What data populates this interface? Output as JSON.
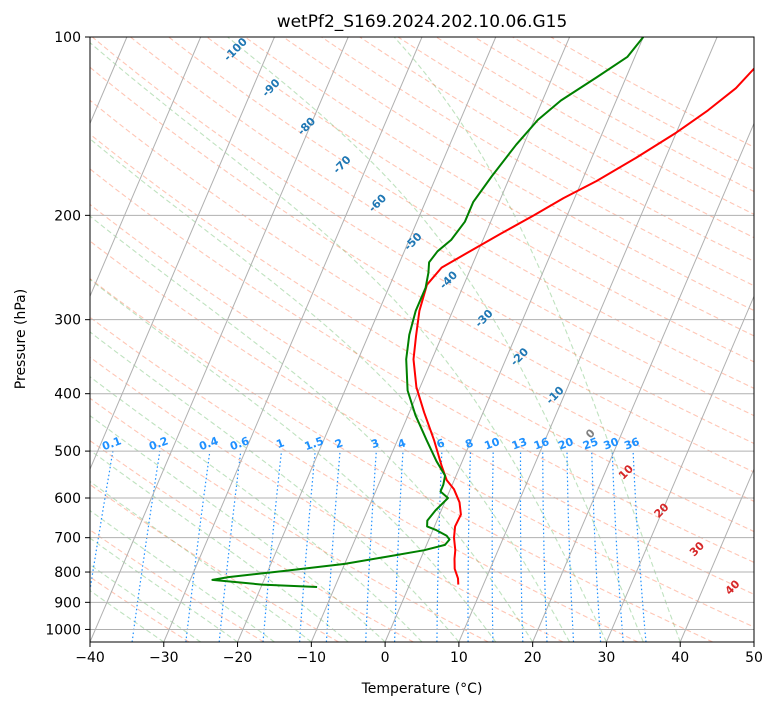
{
  "chart_data": {
    "type": "line",
    "title": "wetPf2_S169.2024.202.10.06.G15",
    "xlabel": "Temperature (°C)",
    "ylabel": "Pressure (hPa)",
    "xlim": [
      -40,
      50
    ],
    "ylim": [
      1050,
      100
    ],
    "y_scale": "log",
    "grid": true,
    "x_ticks": [
      -40,
      -30,
      -20,
      -10,
      0,
      10,
      20,
      30,
      40,
      50
    ],
    "x_tick_labels": [
      "−40",
      "−30",
      "−20",
      "−10",
      "0",
      "10",
      "20",
      "30",
      "40",
      "50"
    ],
    "y_ticks": [
      100,
      200,
      300,
      400,
      500,
      600,
      700,
      800,
      900,
      1000
    ],
    "y_tick_labels": [
      "100",
      "200",
      "300",
      "400",
      "500",
      "600",
      "700",
      "800",
      "900",
      "1000"
    ],
    "series": [
      {
        "color": "#ff0000",
        "points": [
          [
            6.6,
            840
          ],
          [
            6.2,
            820
          ],
          [
            5.2,
            790
          ],
          [
            4.6,
            760
          ],
          [
            4.2,
            735
          ],
          [
            3.3,
            700
          ],
          [
            2.8,
            670
          ],
          [
            2.9,
            640
          ],
          [
            2.0,
            610
          ],
          [
            0.5,
            580
          ],
          [
            -1.0,
            560
          ],
          [
            -2.5,
            530
          ],
          [
            -5,
            480
          ],
          [
            -8,
            430
          ],
          [
            -10.5,
            390
          ],
          [
            -12.5,
            350
          ],
          [
            -13.5,
            320
          ],
          [
            -14.5,
            290
          ],
          [
            -15.0,
            262
          ],
          [
            -14.0,
            245
          ],
          [
            -11.5,
            232
          ],
          [
            -8,
            215
          ],
          [
            -4.5,
            200
          ],
          [
            -1.5,
            187
          ],
          [
            2,
            175
          ],
          [
            6,
            160
          ],
          [
            10,
            145
          ],
          [
            13,
            133
          ],
          [
            15.5,
            122
          ],
          [
            17,
            112
          ],
          [
            18,
            100
          ]
        ]
      },
      {
        "color": "#008000",
        "points": [
          [
            -12.4,
            848
          ],
          [
            -20,
            840
          ],
          [
            -27,
            825
          ],
          [
            -25,
            816
          ],
          [
            -18,
            797
          ],
          [
            -10,
            775
          ],
          [
            -5,
            755
          ],
          [
            0,
            735
          ],
          [
            2.5,
            720
          ],
          [
            2.8,
            705
          ],
          [
            2.2,
            695
          ],
          [
            0.5,
            680
          ],
          [
            -1.0,
            670
          ],
          [
            -1.3,
            655
          ],
          [
            -0.8,
            630
          ],
          [
            0.2,
            600
          ],
          [
            -1.2,
            585
          ],
          [
            -1.2,
            570
          ],
          [
            -1.5,
            550
          ],
          [
            -3.5,
            520
          ],
          [
            -6,
            480
          ],
          [
            -9,
            435
          ],
          [
            -11.5,
            395
          ],
          [
            -13.5,
            350
          ],
          [
            -14.5,
            318
          ],
          [
            -15,
            290
          ],
          [
            -15,
            265
          ],
          [
            -15.5,
            250
          ],
          [
            -16,
            240
          ],
          [
            -15.5,
            230
          ],
          [
            -14.3,
            220
          ],
          [
            -13.5,
            205
          ],
          [
            -13.5,
            190
          ],
          [
            -12.5,
            172
          ],
          [
            -11,
            152
          ],
          [
            -9.5,
            138
          ],
          [
            -7.5,
            128
          ],
          [
            -4,
            117
          ],
          [
            -1,
            108
          ],
          [
            0,
            100
          ]
        ]
      }
    ],
    "dry_adiabat_labels": [
      "-100",
      "-90",
      "-80",
      "-70",
      "-60",
      "-50",
      "-40",
      "-30",
      "-20",
      "-10",
      "0",
      "10",
      "20",
      "30",
      "40"
    ],
    "dry_adiabat_label_colors": {
      "cold": "#1f77b4",
      "zero": "#808080",
      "warm": "#d62728"
    },
    "mixing_ratio_labels": [
      "0.1",
      "0.2",
      "0.4",
      "0.6",
      "1",
      "1.5",
      "2",
      "3",
      "4",
      "6",
      "8",
      "10",
      "13",
      "16",
      "20",
      "25",
      "30",
      "36"
    ],
    "mixing_ratio_label_color": "#1e90ff"
  }
}
